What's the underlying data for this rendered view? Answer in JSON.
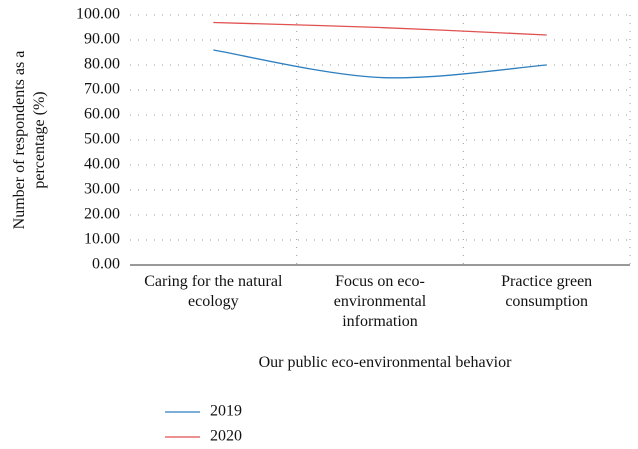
{
  "chart_data": {
    "type": "line",
    "x_label": "Our public eco-environmental behavior",
    "y_label": "Number of respondents as a percentage (%)",
    "categories": [
      "Caring for the natural ecology",
      "Focus on eco-environmental information",
      "Practice green consumption"
    ],
    "series": [
      {
        "name": "2019",
        "color": "#2e7fc0",
        "values": [
          86,
          75,
          80
        ]
      },
      {
        "name": "2020",
        "color": "#e0514f",
        "values": [
          97,
          95,
          92
        ]
      }
    ],
    "ylim": [
      0,
      100
    ],
    "yticks": [
      {
        "value": 0,
        "label": "0.00"
      },
      {
        "value": 10,
        "label": "10.00"
      },
      {
        "value": 20,
        "label": "20.00"
      },
      {
        "value": 30,
        "label": "30.00"
      },
      {
        "value": 40,
        "label": "40.00"
      },
      {
        "value": 50,
        "label": "50.00"
      },
      {
        "value": 60,
        "label": "60.00"
      },
      {
        "value": 70,
        "label": "70.00"
      },
      {
        "value": 80,
        "label": "80.00"
      },
      {
        "value": 90,
        "label": "90.00"
      },
      {
        "value": 100,
        "label": "100.00"
      }
    ],
    "grid": true,
    "legend": "bottom-left"
  }
}
